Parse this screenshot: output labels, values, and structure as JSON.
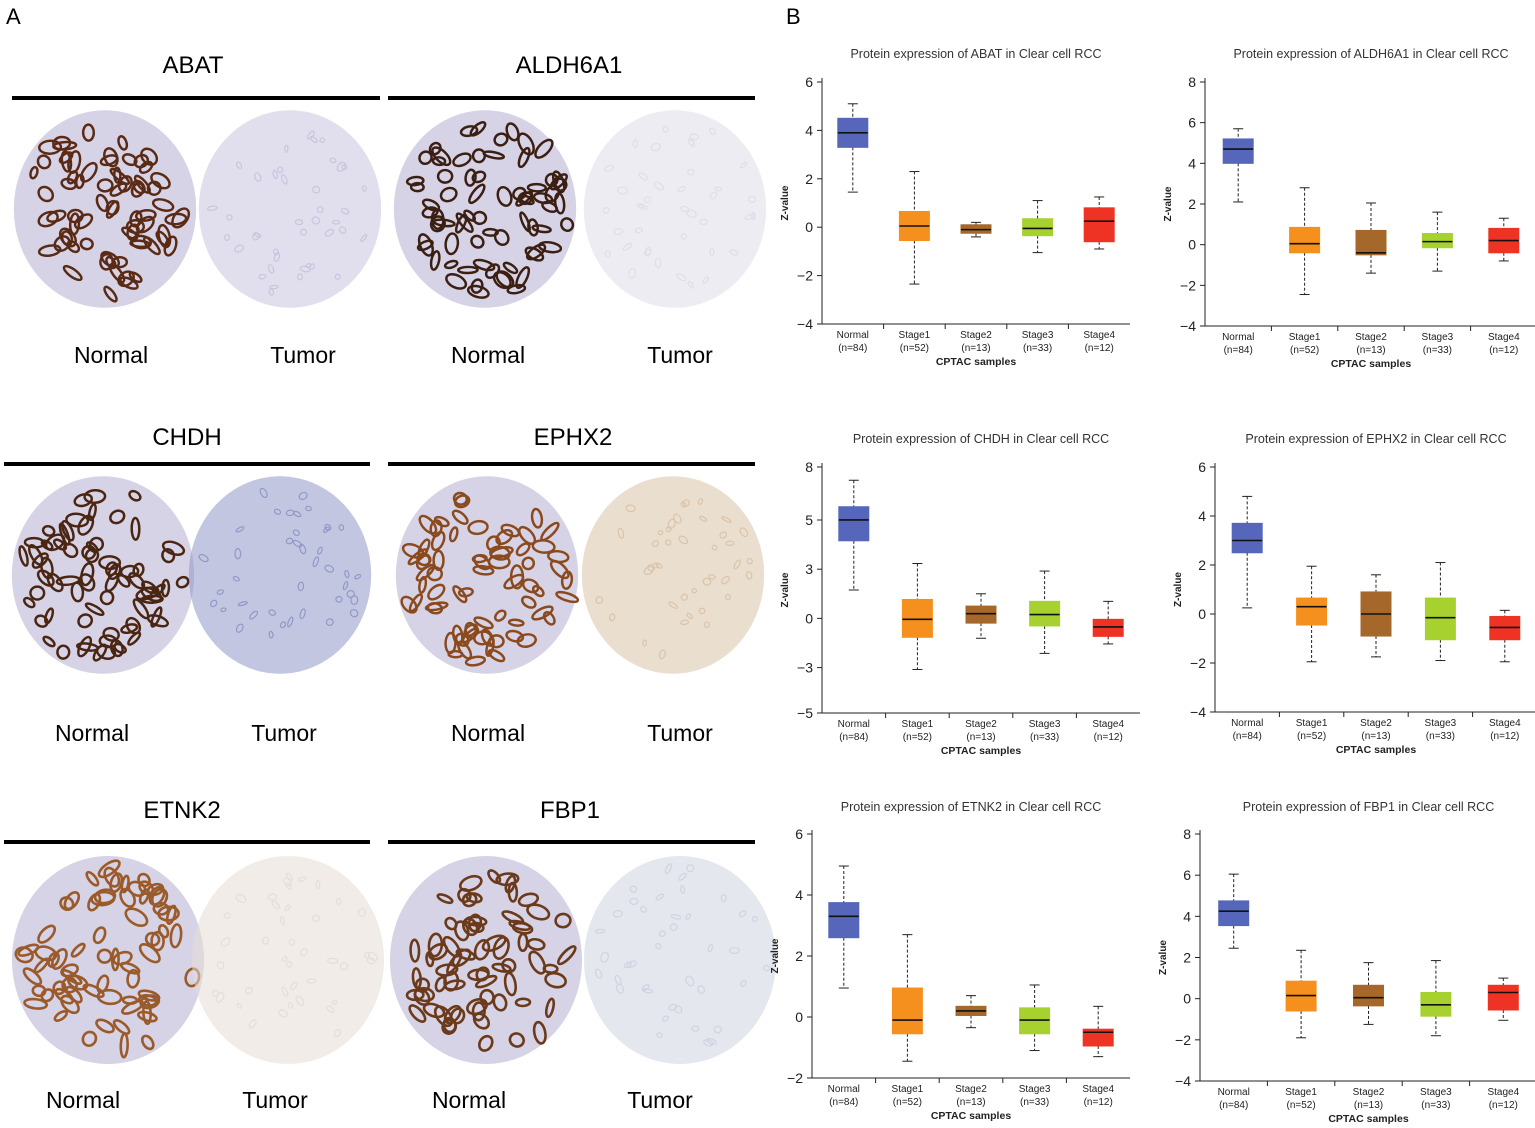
{
  "panel_labels": {
    "a": "A",
    "b": "B"
  },
  "ihc": {
    "genes": [
      "ABAT",
      "ALDH6A1",
      "CHDH",
      "EPHX2",
      "ETNK2",
      "FBP1"
    ],
    "normal_label": "Normal",
    "tumor_label": "Tumor",
    "stain_colors": {
      "ABAT": {
        "normal": "#5a2a14",
        "tumor": "#c9c3df"
      },
      "ALDH6A1": {
        "normal": "#3b1f12",
        "tumor": "#dfdde8"
      },
      "CHDH": {
        "normal": "#4a2612",
        "tumor": "#8f97c6"
      },
      "EPHX2": {
        "normal": "#8a4a1e",
        "tumor": "#d9c3a8"
      },
      "ETNK2": {
        "normal": "#9a5a2a",
        "tumor": "#e6ddd6"
      },
      "FBP1": {
        "normal": "#6b3a1a",
        "tumor": "#cfd3e2"
      }
    }
  },
  "chart_data": [
    {
      "type": "box",
      "title": "Protein expression of ABAT in Clear cell RCC",
      "xlabel": "CPTAC samples",
      "ylabel": "Z-value",
      "ylim": [
        -4,
        6
      ],
      "yticks": [
        "6",
        "4",
        "2",
        "0",
        "−2",
        "−4"
      ],
      "ytick_values": [
        6,
        4,
        2,
        0,
        -2,
        -4
      ],
      "categories": [
        "Normal",
        "Stage1",
        "Stage2",
        "Stage3",
        "Stage4"
      ],
      "counts": [
        "(n=84)",
        "(n=52)",
        "(n=13)",
        "(n=33)",
        "(n=12)"
      ],
      "colors": [
        "#5566bb",
        "#f5901e",
        "#a5682a",
        "#a6d12f",
        "#ee3324"
      ],
      "boxes": [
        {
          "min": 1.45,
          "q1": 3.3,
          "median": 3.9,
          "q3": 4.5,
          "max": 5.1
        },
        {
          "min": -2.35,
          "q1": -0.55,
          "median": 0.05,
          "q3": 0.65,
          "max": 2.3
        },
        {
          "min": -0.4,
          "q1": -0.25,
          "median": -0.1,
          "q3": 0.1,
          "max": 0.2
        },
        {
          "min": -1.05,
          "q1": -0.35,
          "median": -0.05,
          "q3": 0.35,
          "max": 1.1
        },
        {
          "min": -0.9,
          "q1": -0.6,
          "median": 0.25,
          "q3": 0.8,
          "max": 1.25
        }
      ]
    },
    {
      "type": "box",
      "title": "Protein expression of ALDH6A1 in Clear cell RCC",
      "xlabel": "CPTAC samples",
      "ylabel": "Z-value",
      "ylim": [
        -4,
        8
      ],
      "yticks": [
        "8",
        "6",
        "4",
        "2",
        "0",
        "−2",
        "−4"
      ],
      "ytick_values": [
        8,
        6,
        4,
        2,
        0,
        -2,
        -4
      ],
      "categories": [
        "Normal",
        "Stage1",
        "Stage2",
        "Stage3",
        "Stage4"
      ],
      "counts": [
        "(n=84)",
        "(n=52)",
        "(n=13)",
        "(n=33)",
        "(n=12)"
      ],
      "colors": [
        "#5566bb",
        "#f5901e",
        "#a5682a",
        "#a6d12f",
        "#ee3324"
      ],
      "boxes": [
        {
          "min": 2.1,
          "q1": 4.0,
          "median": 4.7,
          "q3": 5.2,
          "max": 5.7
        },
        {
          "min": -2.45,
          "q1": -0.4,
          "median": 0.05,
          "q3": 0.85,
          "max": 2.8
        },
        {
          "min": -1.4,
          "q1": -0.5,
          "median": -0.4,
          "q3": 0.7,
          "max": 2.05
        },
        {
          "min": -1.3,
          "q1": -0.15,
          "median": 0.15,
          "q3": 0.55,
          "max": 1.6
        },
        {
          "min": -0.8,
          "q1": -0.4,
          "median": 0.2,
          "q3": 0.8,
          "max": 1.3
        }
      ]
    },
    {
      "type": "box",
      "title": "Protein expression of CHDH in Clear cell RCC",
      "xlabel": "CPTAC samples",
      "ylabel": "Z-value",
      "ylim": [
        -5,
        8
      ],
      "yticks": [
        "8",
        "5",
        "3",
        "0",
        "−3",
        "−5"
      ],
      "ytick_values": [
        8,
        5.2,
        2.6,
        0,
        -2.6,
        -5
      ],
      "categories": [
        "Normal",
        "Stage1",
        "Stage2",
        "Stage3",
        "Stage4"
      ],
      "counts": [
        "(n=84)",
        "(n=52)",
        "(n=13)",
        "(n=33)",
        "(n=12)"
      ],
      "colors": [
        "#5566bb",
        "#f5901e",
        "#a5682a",
        "#a6d12f",
        "#ee3324"
      ],
      "boxes": [
        {
          "min": 1.5,
          "q1": 4.1,
          "median": 5.2,
          "q3": 5.9,
          "max": 7.3
        },
        {
          "min": -2.7,
          "q1": -1.0,
          "median": -0.05,
          "q3": 1.0,
          "max": 2.9
        },
        {
          "min": -1.05,
          "q1": -0.25,
          "median": 0.25,
          "q3": 0.65,
          "max": 1.3
        },
        {
          "min": -1.85,
          "q1": -0.4,
          "median": 0.2,
          "q3": 0.9,
          "max": 2.5
        },
        {
          "min": -1.35,
          "q1": -0.95,
          "median": -0.45,
          "q3": -0.05,
          "max": 0.9
        }
      ]
    },
    {
      "type": "box",
      "title": "Protein expression of EPHX2 in Clear cell RCC",
      "xlabel": "CPTAC samples",
      "ylabel": "Z-value",
      "ylim": [
        -4,
        6
      ],
      "yticks": [
        "6",
        "4",
        "2",
        "0",
        "−2",
        "−4"
      ],
      "ytick_values": [
        6,
        4,
        2,
        0,
        -2,
        -4
      ],
      "categories": [
        "Normal",
        "Stage1",
        "Stage2",
        "Stage3",
        "Stage4"
      ],
      "counts": [
        "(n=84)",
        "(n=52)",
        "(n=13)",
        "(n=33)",
        "(n=12)"
      ],
      "colors": [
        "#5566bb",
        "#f5901e",
        "#a5682a",
        "#a6d12f",
        "#ee3324"
      ],
      "boxes": [
        {
          "min": 0.25,
          "q1": 2.5,
          "median": 3.0,
          "q3": 3.7,
          "max": 4.8
        },
        {
          "min": -1.95,
          "q1": -0.45,
          "median": 0.3,
          "q3": 0.65,
          "max": 1.95
        },
        {
          "min": -1.75,
          "q1": -0.9,
          "median": 0.0,
          "q3": 0.9,
          "max": 1.6
        },
        {
          "min": -1.9,
          "q1": -1.05,
          "median": -0.15,
          "q3": 0.65,
          "max": 2.1
        },
        {
          "min": -1.95,
          "q1": -1.05,
          "median": -0.55,
          "q3": -0.1,
          "max": 0.15
        }
      ]
    },
    {
      "type": "box",
      "title": "Protein expression of ETNK2 in Clear cell RCC",
      "xlabel": "CPTAC samples",
      "ylabel": "Z-value",
      "ylim": [
        -2,
        6
      ],
      "yticks": [
        "6",
        "4",
        "2",
        "0",
        "−2"
      ],
      "ytick_values": [
        6,
        4,
        2,
        0,
        -2
      ],
      "categories": [
        "Normal",
        "Stage1",
        "Stage2",
        "Stage3",
        "Stage4"
      ],
      "counts": [
        "(n=84)",
        "(n=52)",
        "(n=13)",
        "(n=33)",
        "(n=12)"
      ],
      "colors": [
        "#5566bb",
        "#f5901e",
        "#a5682a",
        "#a6d12f",
        "#ee3324"
      ],
      "boxes": [
        {
          "min": 0.95,
          "q1": 2.6,
          "median": 3.3,
          "q3": 3.75,
          "max": 4.95
        },
        {
          "min": -1.45,
          "q1": -0.55,
          "median": -0.1,
          "q3": 0.95,
          "max": 2.7
        },
        {
          "min": -0.35,
          "q1": 0.05,
          "median": 0.2,
          "q3": 0.35,
          "max": 0.7
        },
        {
          "min": -1.1,
          "q1": -0.55,
          "median": -0.1,
          "q3": 0.3,
          "max": 1.05
        },
        {
          "min": -1.3,
          "q1": -0.95,
          "median": -0.5,
          "q3": -0.4,
          "max": 0.35
        }
      ]
    },
    {
      "type": "box",
      "title": "Protein expression of FBP1 in Clear cell RCC",
      "xlabel": "CPTAC samples",
      "ylabel": "Z-value",
      "ylim": [
        -4,
        8
      ],
      "yticks": [
        "8",
        "6",
        "4",
        "2",
        "0",
        "−2",
        "−4"
      ],
      "ytick_values": [
        8,
        6,
        4,
        2,
        0,
        -2,
        -4
      ],
      "categories": [
        "Normal",
        "Stage1",
        "Stage2",
        "Stage3",
        "Stage4"
      ],
      "counts": [
        "(n=84)",
        "(n=52)",
        "(n=13)",
        "(n=33)",
        "(n=12)"
      ],
      "colors": [
        "#5566bb",
        "#f5901e",
        "#a5682a",
        "#a6d12f",
        "#ee3324"
      ],
      "boxes": [
        {
          "min": 2.45,
          "q1": 3.55,
          "median": 4.25,
          "q3": 4.75,
          "max": 6.05
        },
        {
          "min": -1.9,
          "q1": -0.6,
          "median": 0.15,
          "q3": 0.85,
          "max": 2.35
        },
        {
          "min": -1.25,
          "q1": -0.35,
          "median": 0.05,
          "q3": 0.65,
          "max": 1.75
        },
        {
          "min": -1.8,
          "q1": -0.85,
          "median": -0.3,
          "q3": 0.3,
          "max": 1.85
        },
        {
          "min": -1.05,
          "q1": -0.55,
          "median": 0.3,
          "q3": 0.65,
          "max": 1.0
        }
      ]
    }
  ]
}
